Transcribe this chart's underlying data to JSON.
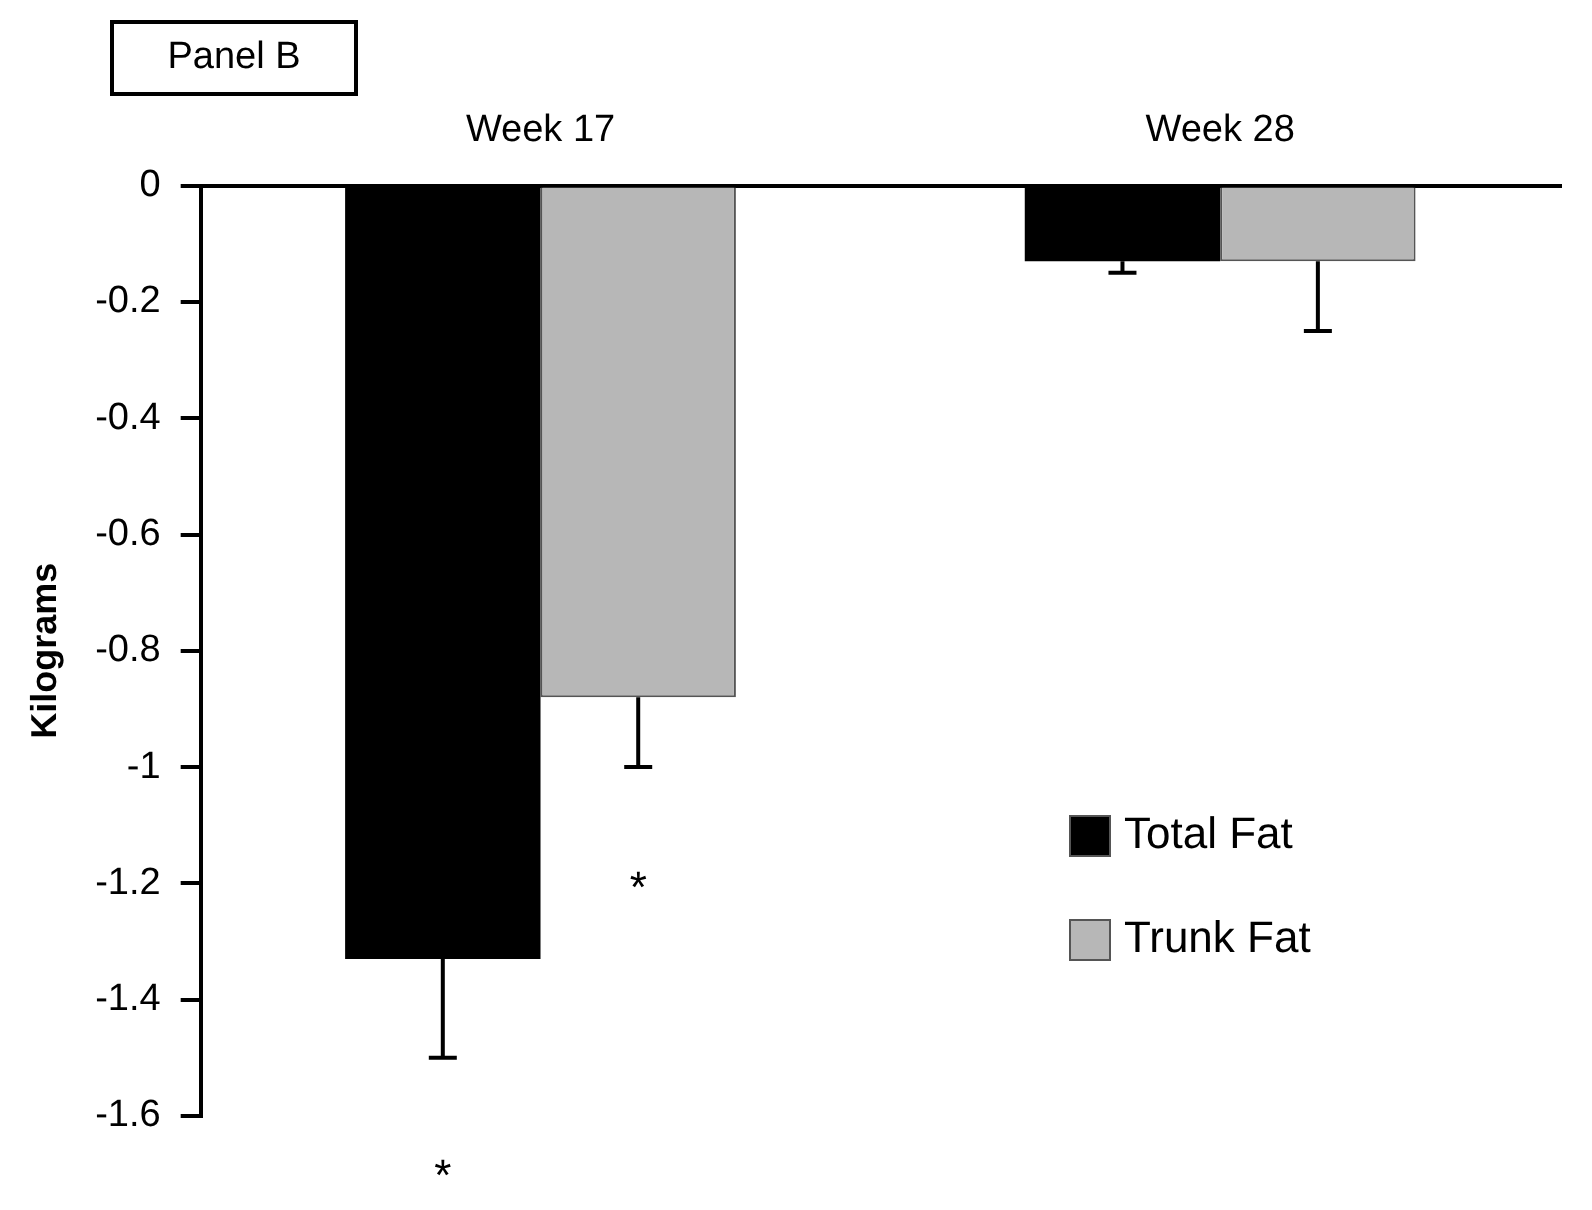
{
  "chart_data": {
    "type": "bar",
    "title": "Panel B",
    "ylabel": "Kilograms",
    "categories": [
      "Week 17",
      "Week 28"
    ],
    "series": [
      {
        "name": "Total Fat",
        "color": "#000000",
        "values": [
          -1.33,
          -0.13
        ],
        "errors": [
          [
            -1.5,
            -1.33
          ],
          [
            -0.15,
            -0.13
          ]
        ]
      },
      {
        "name": "Trunk Fat",
        "color": "#b7b7b7",
        "values": [
          -0.88,
          -0.13
        ],
        "errors": [
          [
            -1.0,
            -0.88
          ],
          [
            -0.25,
            -0.13
          ]
        ]
      }
    ],
    "ylim": [
      -1.6,
      0
    ],
    "yticks": [
      -1.6,
      -1.4,
      -1.2,
      -1,
      -0.8,
      -0.6,
      -0.4,
      -0.2,
      0
    ],
    "grid": false,
    "legend": "bottom right",
    "annotations": [
      "*",
      {
        "text": "*",
        "x": "Week 17",
        "y": -1.19
      }
    ]
  }
}
